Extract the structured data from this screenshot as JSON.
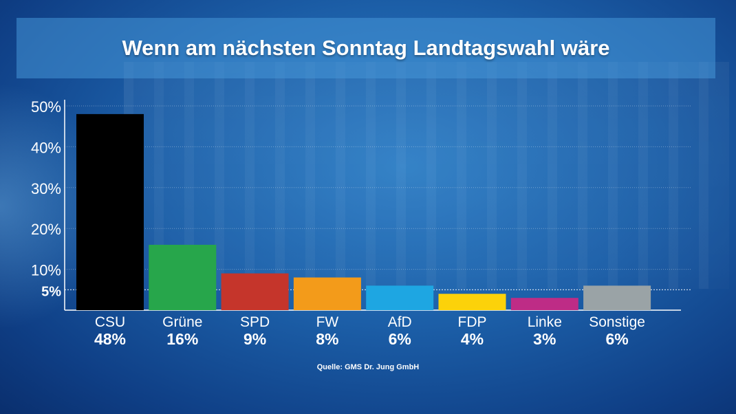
{
  "title": "Wenn am nächsten Sonntag Landtagswahl wäre",
  "source": "Quelle: GMS Dr. Jung GmbH",
  "chart_data": {
    "type": "bar",
    "title": "Wenn am nächsten Sonntag Landtagswahl wäre",
    "categories": [
      "CSU",
      "Grüne",
      "SPD",
      "FW",
      "AfD",
      "FDP",
      "Linke",
      "Sonstige"
    ],
    "values": [
      48,
      16,
      9,
      8,
      6,
      4,
      3,
      6
    ],
    "value_labels": [
      "48%",
      "16%",
      "9%",
      "8%",
      "6%",
      "4%",
      "3%",
      "6%"
    ],
    "colors": [
      "#000000",
      "#27a64b",
      "#c5352b",
      "#f39b1a",
      "#1ea6e2",
      "#fcd20a",
      "#be2c86",
      "#9aa3a6"
    ],
    "ylim": [
      0,
      50
    ],
    "yticks": [
      {
        "value": 50,
        "label": "50%"
      },
      {
        "value": 40,
        "label": "40%"
      },
      {
        "value": 30,
        "label": "30%"
      },
      {
        "value": 20,
        "label": "20%"
      },
      {
        "value": 10,
        "label": "10%"
      },
      {
        "value": 5,
        "label": "5%"
      }
    ],
    "threshold": 5,
    "grid": true
  }
}
